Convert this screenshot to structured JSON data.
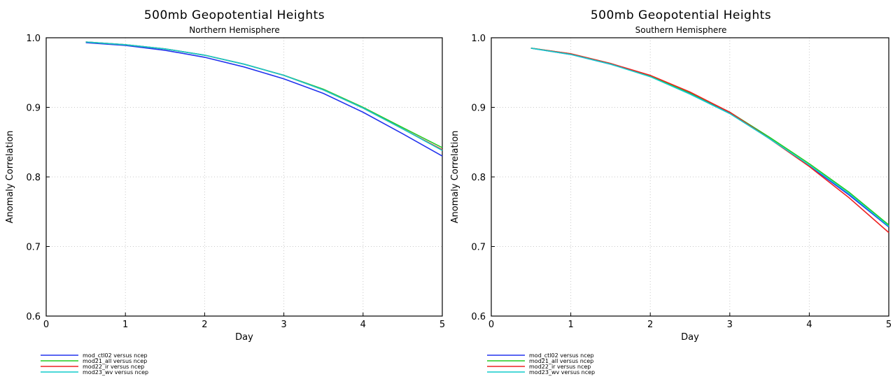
{
  "chart_data": [
    {
      "type": "line",
      "title": "500mb Geopotential Heights",
      "subtitle": "Northern Hemisphere",
      "xlabel": "Day",
      "ylabel": "Anomaly Correlation",
      "xlim": [
        0,
        5
      ],
      "ylim": [
        0.6,
        1.0
      ],
      "xticks": [
        "0",
        "1",
        "2",
        "3",
        "4",
        "5"
      ],
      "yticks": [
        "0.6",
        "0.7",
        "0.8",
        "0.9",
        "1.0"
      ],
      "grid": true,
      "legend_position": "bottom-left",
      "x": [
        0.5,
        1,
        1.5,
        2,
        2.5,
        3,
        3.5,
        4,
        4.5,
        5
      ],
      "series": [
        {
          "name": "mod_ctl02 versus ncep",
          "color": "#2233ee",
          "values": [
            0.993,
            0.989,
            0.982,
            0.972,
            0.958,
            0.941,
            0.92,
            0.893,
            0.862,
            0.83
          ]
        },
        {
          "name": "mod21_all versus ncep",
          "color": "#22cc22",
          "values": [
            0.994,
            0.99,
            0.984,
            0.975,
            0.962,
            0.946,
            0.926,
            0.9,
            0.871,
            0.842
          ]
        },
        {
          "name": "mod22_ir versus ncep",
          "color": "#ee2222",
          "values": [
            0.994,
            0.99,
            0.984,
            0.975,
            0.962,
            0.946,
            0.925,
            0.899,
            0.869,
            0.839
          ]
        },
        {
          "name": "mod23_wv versus ncep",
          "color": "#11cccc",
          "values": [
            0.994,
            0.99,
            0.984,
            0.975,
            0.962,
            0.946,
            0.925,
            0.899,
            0.869,
            0.838
          ]
        }
      ]
    },
    {
      "type": "line",
      "title": "500mb Geopotential Heights",
      "subtitle": "Southern Hemisphere",
      "xlabel": "Day",
      "ylabel": "Anomaly Correlation",
      "xlim": [
        0,
        5
      ],
      "ylim": [
        0.6,
        1.0
      ],
      "xticks": [
        "0",
        "1",
        "2",
        "3",
        "4",
        "5"
      ],
      "yticks": [
        "0.6",
        "0.7",
        "0.8",
        "0.9",
        "1.0"
      ],
      "grid": true,
      "legend_position": "bottom-left",
      "x": [
        0.5,
        1,
        1.5,
        2,
        2.5,
        3,
        3.5,
        4,
        4.5,
        5
      ],
      "series": [
        {
          "name": "mod_ctl02 versus ncep",
          "color": "#2233ee",
          "values": [
            0.985,
            0.976,
            0.962,
            0.945,
            0.92,
            0.892,
            0.855,
            0.816,
            0.774,
            0.728
          ]
        },
        {
          "name": "mod21_all versus ncep",
          "color": "#22cc22",
          "values": [
            0.985,
            0.977,
            0.963,
            0.945,
            0.921,
            0.893,
            0.857,
            0.819,
            0.778,
            0.731
          ]
        },
        {
          "name": "mod22_ir versus ncep",
          "color": "#ee2222",
          "values": [
            0.985,
            0.977,
            0.963,
            0.946,
            0.922,
            0.893,
            0.855,
            0.815,
            0.77,
            0.72
          ]
        },
        {
          "name": "mod23_wv versus ncep",
          "color": "#11cccc",
          "values": [
            0.985,
            0.976,
            0.962,
            0.944,
            0.919,
            0.891,
            0.855,
            0.817,
            0.776,
            0.729
          ]
        }
      ]
    }
  ]
}
